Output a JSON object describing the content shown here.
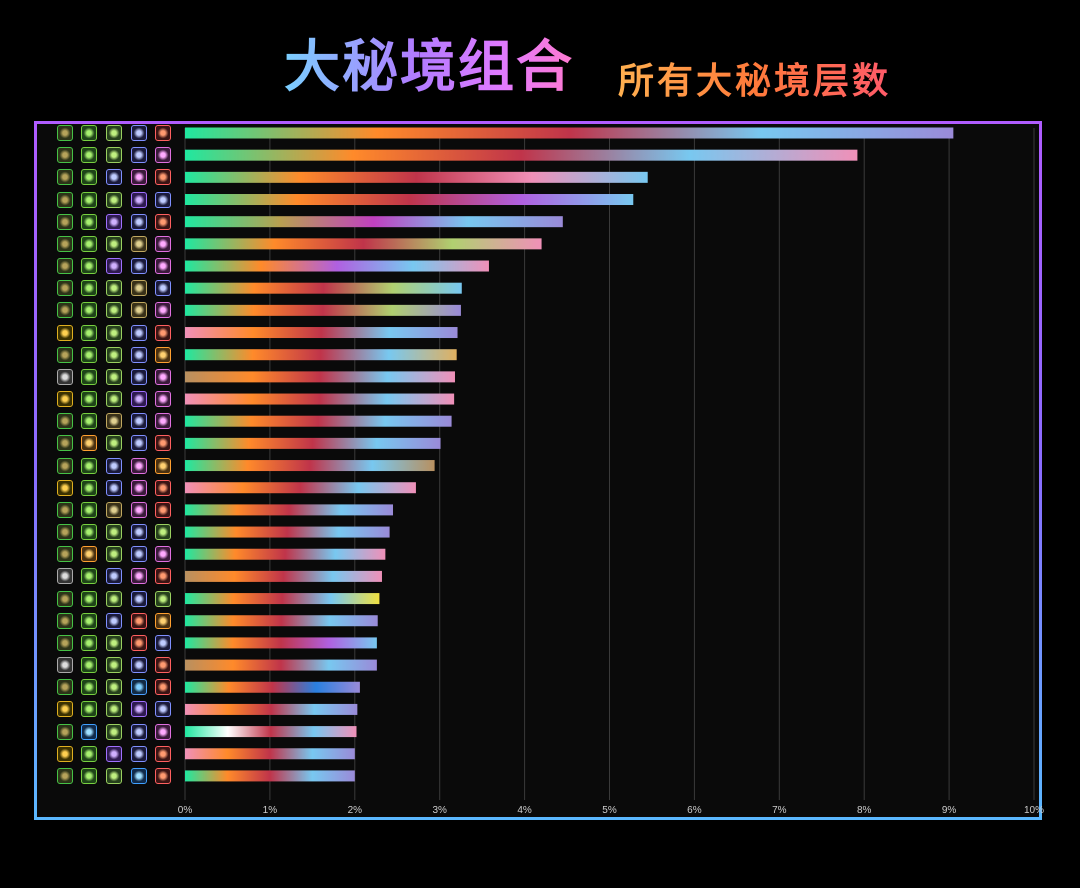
{
  "title": {
    "main": "大秘境组合",
    "sub": "所有大秘境层数"
  },
  "colors": {
    "frame_top": "#b05cff",
    "frame_bottom": "#5bb8ff",
    "grid": "#3a3a3a",
    "tick_text": "#cccccc"
  },
  "chart_data": {
    "type": "bar",
    "orientation": "horizontal",
    "title": "大秘境组合",
    "subtitle": "所有大秘境层数",
    "xlabel": "",
    "ylabel": "",
    "xlim": [
      0,
      10
    ],
    "grid": true,
    "x_ticks": [
      "0%",
      "1%",
      "2%",
      "3%",
      "4%",
      "5%",
      "6%",
      "7%",
      "8%",
      "9%",
      "10%"
    ],
    "values": [
      9.05,
      7.92,
      5.45,
      5.28,
      4.45,
      4.2,
      3.58,
      3.26,
      3.25,
      3.21,
      3.2,
      3.18,
      3.17,
      3.14,
      3.01,
      2.94,
      2.72,
      2.45,
      2.41,
      2.36,
      2.32,
      2.29,
      2.27,
      2.26,
      2.26,
      2.06,
      2.03,
      2.02,
      2.0,
      2.0
    ],
    "icon_palette": {
      "t": {
        "bg": "#2c3318",
        "border": "#46c246",
        "mark": "#b6a35a",
        "name": "tank-icon"
      },
      "a": {
        "bg": "#3a3000",
        "border": "#e0b020",
        "mark": "#ffd050",
        "name": "armor-icon"
      },
      "k": {
        "bg": "#333333",
        "border": "#aaaaaa",
        "mark": "#dddddd",
        "name": "knight-icon"
      },
      "l": {
        "bg": "#1e4418",
        "border": "#78d040",
        "mark": "#a8f070",
        "name": "leaf-icon"
      },
      "f": {
        "bg": "#4a3010",
        "border": "#ffa030",
        "mark": "#ffd070",
        "name": "fire-icon"
      },
      "w": {
        "bg": "#102a4a",
        "border": "#40a0ff",
        "mark": "#a0e0ff",
        "name": "water-icon"
      },
      "s": {
        "bg": "#26401c",
        "border": "#9ad060",
        "mark": "#c0f080",
        "name": "skull-icon"
      },
      "g": {
        "bg": "#383018",
        "border": "#c0a860",
        "mark": "#e0d090",
        "name": "golem-icon"
      },
      "n": {
        "bg": "#1a1a3a",
        "border": "#8090ff",
        "mark": "#c0ccff",
        "name": "spear-icon"
      },
      "v": {
        "bg": "#2e1a50",
        "border": "#a070ff",
        "mark": "#d0b0ff",
        "name": "void-icon"
      },
      "p": {
        "bg": "#3a1a3a",
        "border": "#e070e0",
        "mark": "#ffaaff",
        "name": "arcane-icon"
      },
      "d": {
        "bg": "#3a1414",
        "border": "#ff6060",
        "mark": "#ff9a70",
        "name": "demon-icon"
      },
      "e": {
        "bg": "#122a44",
        "border": "#4ca0ff",
        "mark": "#80d0ff",
        "name": "lightning-icon"
      }
    },
    "rows": [
      {
        "icons": [
          "t",
          "l",
          "s",
          "n",
          "d"
        ],
        "colors": [
          "#1fe8a0",
          "#ff8a2a",
          "#c0344a",
          "#78c8f0",
          "#9a8ad8"
        ]
      },
      {
        "icons": [
          "t",
          "l",
          "s",
          "n",
          "p"
        ],
        "colors": [
          "#1fe8a0",
          "#ff8a2a",
          "#c0344a",
          "#78c8f0",
          "#f090b8"
        ]
      },
      {
        "icons": [
          "t",
          "l",
          "n",
          "p",
          "d"
        ],
        "colors": [
          "#1fe8a0",
          "#ff8a2a",
          "#c0344a",
          "#f090b8",
          "#78c8f0"
        ]
      },
      {
        "icons": [
          "t",
          "l",
          "s",
          "v",
          "n"
        ],
        "colors": [
          "#1fe8a0",
          "#ff8a2a",
          "#c0344a",
          "#b060e0",
          "#78c8f0"
        ]
      },
      {
        "icons": [
          "t",
          "l",
          "v",
          "n",
          "d"
        ],
        "colors": [
          "#1fe8a0",
          "#b8a050",
          "#c040c0",
          "#78c8f0",
          "#9a8ad8"
        ]
      },
      {
        "icons": [
          "t",
          "l",
          "s",
          "g",
          "p"
        ],
        "colors": [
          "#1fe8a0",
          "#ff8a2a",
          "#c0344a",
          "#b0d070",
          "#f090b8"
        ]
      },
      {
        "icons": [
          "t",
          "l",
          "v",
          "n",
          "p"
        ],
        "colors": [
          "#1fe8a0",
          "#ff8a2a",
          "#b060e0",
          "#78c8f0",
          "#f090b8"
        ]
      },
      {
        "icons": [
          "t",
          "l",
          "s",
          "g",
          "n"
        ],
        "colors": [
          "#1fe8a0",
          "#ff8a2a",
          "#c0344a",
          "#b0d070",
          "#78c8f0"
        ]
      },
      {
        "icons": [
          "t",
          "l",
          "s",
          "g",
          "p"
        ],
        "colors": [
          "#1fe8a0",
          "#ff8a2a",
          "#c0344a",
          "#b0d070",
          "#9a8ad8"
        ]
      },
      {
        "icons": [
          "a",
          "l",
          "s",
          "n",
          "d"
        ],
        "colors": [
          "#f090b8",
          "#ff8a2a",
          "#c0344a",
          "#78c8f0",
          "#9a8ad8"
        ]
      },
      {
        "icons": [
          "t",
          "l",
          "s",
          "n",
          "f"
        ],
        "colors": [
          "#1fe8a0",
          "#ff8a2a",
          "#c0344a",
          "#78c8f0",
          "#e0b060"
        ]
      },
      {
        "icons": [
          "k",
          "l",
          "s",
          "n",
          "p"
        ],
        "colors": [
          "#b89060",
          "#ff8a2a",
          "#c0344a",
          "#78c8f0",
          "#f090b8"
        ]
      },
      {
        "icons": [
          "a",
          "l",
          "s",
          "v",
          "p"
        ],
        "colors": [
          "#f090b8",
          "#ff8a2a",
          "#c0344a",
          "#78c8f0",
          "#f090b8"
        ]
      },
      {
        "icons": [
          "t",
          "l",
          "g",
          "n",
          "p"
        ],
        "colors": [
          "#1fe8a0",
          "#ff8a2a",
          "#c0344a",
          "#78c8f0",
          "#9a8ad8"
        ]
      },
      {
        "icons": [
          "t",
          "f",
          "s",
          "n",
          "d"
        ],
        "colors": [
          "#1fe8a0",
          "#ff8a2a",
          "#c0344a",
          "#78c8f0",
          "#9a8ad8"
        ]
      },
      {
        "icons": [
          "t",
          "l",
          "n",
          "p",
          "f"
        ],
        "colors": [
          "#1fe8a0",
          "#ff8a2a",
          "#c0344a",
          "#78c8f0",
          "#b89060"
        ]
      },
      {
        "icons": [
          "a",
          "l",
          "n",
          "p",
          "d"
        ],
        "colors": [
          "#f090b8",
          "#ff8a2a",
          "#c0344a",
          "#78c8f0",
          "#f090b8"
        ]
      },
      {
        "icons": [
          "t",
          "l",
          "g",
          "p",
          "d"
        ],
        "colors": [
          "#1fe8a0",
          "#ff8a2a",
          "#c0344a",
          "#78c8f0",
          "#9a8ad8"
        ]
      },
      {
        "icons": [
          "t",
          "l",
          "s",
          "n",
          "s"
        ],
        "colors": [
          "#1fe8a0",
          "#ff8a2a",
          "#c0344a",
          "#78c8f0",
          "#9a8ad8"
        ]
      },
      {
        "icons": [
          "t",
          "f",
          "s",
          "n",
          "p"
        ],
        "colors": [
          "#1fe8a0",
          "#ff8a2a",
          "#c0344a",
          "#78c8f0",
          "#f090b8"
        ]
      },
      {
        "icons": [
          "k",
          "l",
          "n",
          "p",
          "d"
        ],
        "colors": [
          "#b89060",
          "#ff8a2a",
          "#c0344a",
          "#78c8f0",
          "#f090b8"
        ]
      },
      {
        "icons": [
          "t",
          "l",
          "s",
          "n",
          "s"
        ],
        "colors": [
          "#1fe8a0",
          "#ff8a2a",
          "#c0344a",
          "#78c8f0",
          "#f0e040"
        ]
      },
      {
        "icons": [
          "t",
          "l",
          "n",
          "d",
          "f"
        ],
        "colors": [
          "#1fe8a0",
          "#ff8a2a",
          "#c0344a",
          "#78c8f0",
          "#9a8ad8"
        ]
      },
      {
        "icons": [
          "t",
          "l",
          "s",
          "d",
          "n"
        ],
        "colors": [
          "#1fe8a0",
          "#ff8a2a",
          "#c0344a",
          "#b060e0",
          "#78c8f0"
        ]
      },
      {
        "icons": [
          "k",
          "l",
          "s",
          "n",
          "d"
        ],
        "colors": [
          "#b89060",
          "#ff8a2a",
          "#c0344a",
          "#78c8f0",
          "#9a8ad8"
        ]
      },
      {
        "icons": [
          "t",
          "l",
          "s",
          "e",
          "d"
        ],
        "colors": [
          "#1fe8a0",
          "#ff8a2a",
          "#c0344a",
          "#2a80e0",
          "#9a8ad8"
        ]
      },
      {
        "icons": [
          "a",
          "l",
          "s",
          "v",
          "n"
        ],
        "colors": [
          "#f090b8",
          "#ff8a2a",
          "#c0344a",
          "#78c8f0",
          "#9a8ad8"
        ]
      },
      {
        "icons": [
          "t",
          "w",
          "s",
          "n",
          "p"
        ],
        "colors": [
          "#1fe8a0",
          "#ffffff",
          "#c0344a",
          "#78c8f0",
          "#f090b8"
        ]
      },
      {
        "icons": [
          "a",
          "l",
          "v",
          "n",
          "d"
        ],
        "colors": [
          "#f090b8",
          "#ff8a2a",
          "#c0344a",
          "#78c8f0",
          "#9a8ad8"
        ]
      },
      {
        "icons": [
          "t",
          "l",
          "s",
          "w",
          "d"
        ],
        "colors": [
          "#1fe8a0",
          "#ff8a2a",
          "#c0344a",
          "#78c8f0",
          "#9a8ad8"
        ]
      }
    ]
  }
}
